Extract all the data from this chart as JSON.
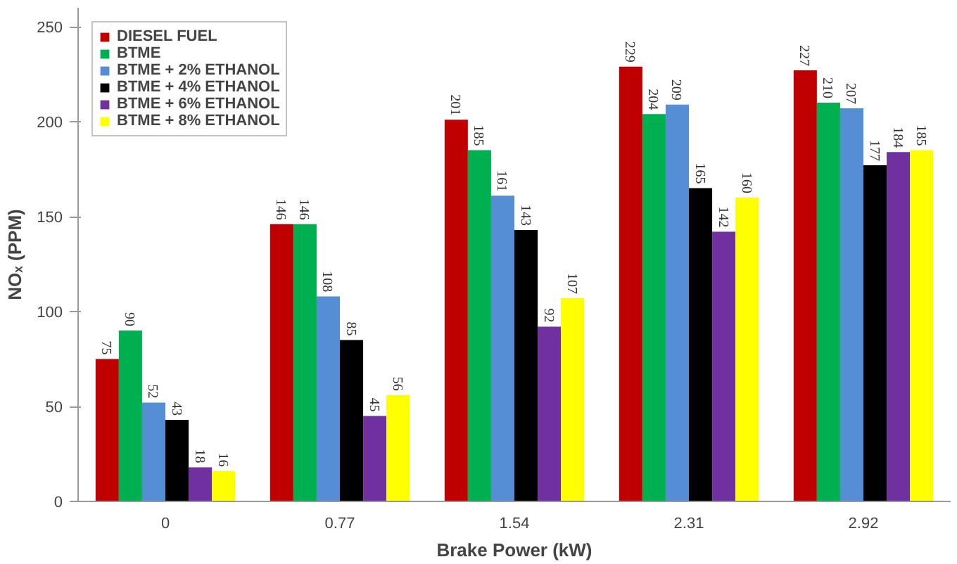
{
  "chart_data": {
    "type": "bar",
    "xlabel": "Brake Power (kW)",
    "ylabel": "NOₓ (PPM)",
    "categories": [
      "0",
      "0.77",
      "1.54",
      "2.31",
      "2.92"
    ],
    "series": [
      {
        "name": "DIESEL FUEL",
        "color": "#c00000",
        "values": [
          75,
          146,
          201,
          229,
          227
        ]
      },
      {
        "name": "BTME",
        "color": "#00b050",
        "values": [
          90,
          146,
          185,
          204,
          210
        ]
      },
      {
        "name": "BTME + 2% ETHANOL",
        "color": "#558ed5",
        "values": [
          52,
          108,
          161,
          209,
          207
        ]
      },
      {
        "name": "BTME + 4% ETHANOL",
        "color": "#000000",
        "values": [
          43,
          85,
          143,
          165,
          177
        ]
      },
      {
        "name": "BTME + 6% ETHANOL",
        "color": "#7030a0",
        "values": [
          18,
          45,
          92,
          142,
          184
        ]
      },
      {
        "name": "BTME + 8% ETHANOL",
        "color": "#ffff00",
        "values": [
          16,
          56,
          107,
          160,
          185
        ]
      }
    ],
    "ylim": [
      0,
      260
    ],
    "yticks": [
      0,
      50,
      100,
      150,
      200,
      250
    ],
    "grid": false,
    "legend": "top left",
    "data_labels": true
  }
}
